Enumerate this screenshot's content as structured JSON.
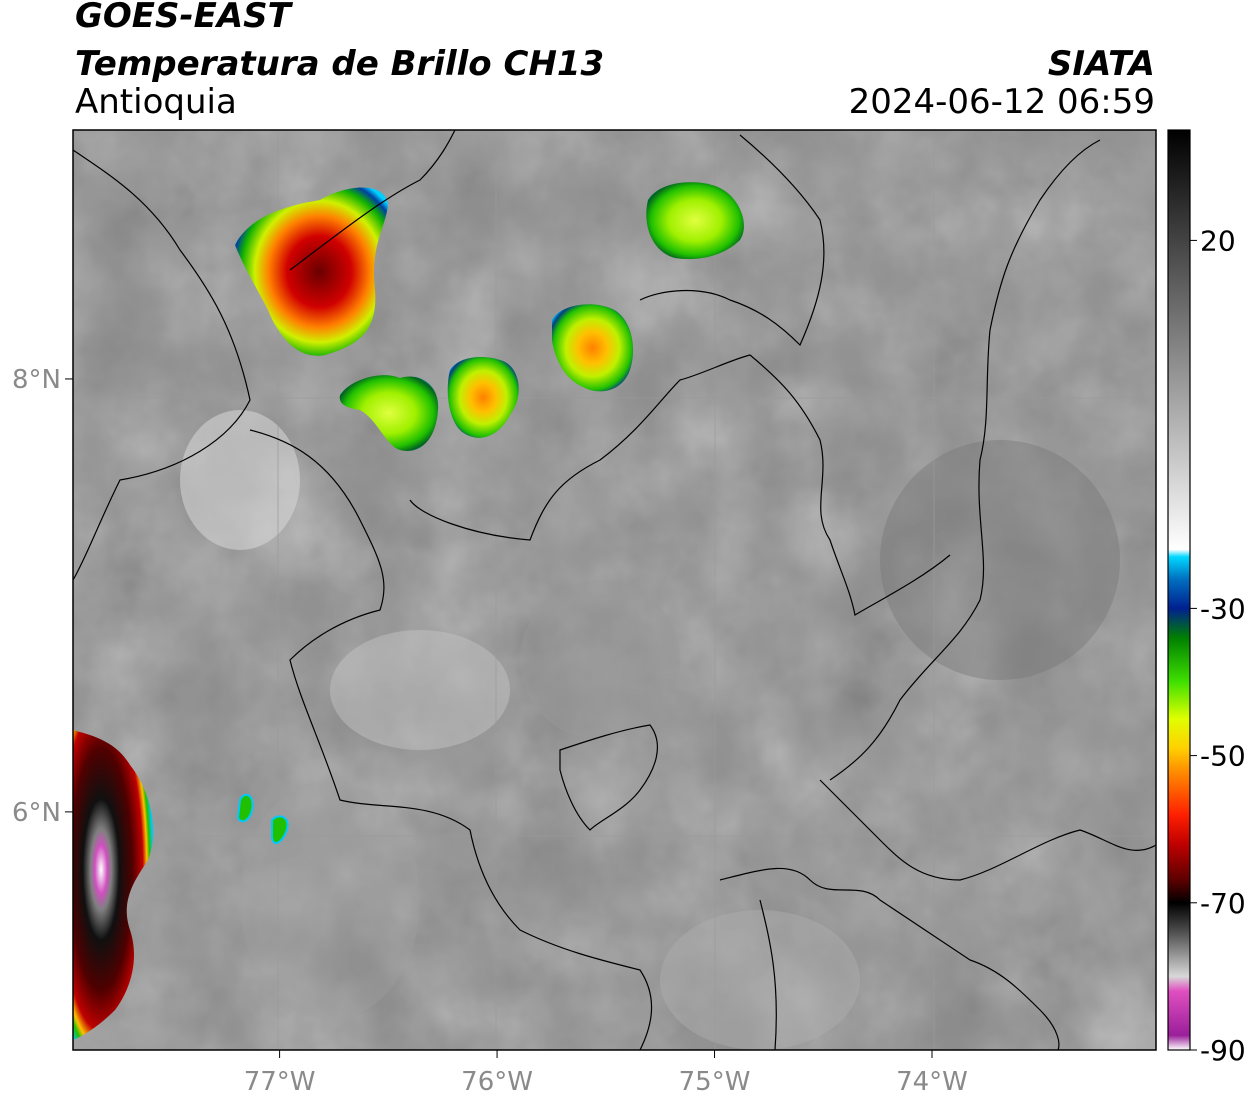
{
  "header": {
    "satellite": "GOES-EAST",
    "product": "Temperatura de Brillo CH13",
    "region": "Antioquia",
    "organization": "SIATA",
    "datetime": "2024-06-12 06:59"
  },
  "map": {
    "lon_range": [
      -77.95,
      -72.97
    ],
    "lat_range": [
      4.9,
      9.15
    ],
    "lon_ticks": [
      {
        "value": -77,
        "label": "77°W"
      },
      {
        "value": -76,
        "label": "76°W"
      },
      {
        "value": -75,
        "label": "75°W"
      },
      {
        "value": -74,
        "label": "74°W"
      }
    ],
    "lat_ticks": [
      {
        "value": 8,
        "label": "8°N"
      },
      {
        "value": 6,
        "label": "6°N"
      }
    ],
    "colors": {
      "background_gray": "#8c8c8c",
      "cold_core": "#8b0000",
      "mid": "#ff0000",
      "warm_edge": "#00c000",
      "outline": "#0000a0"
    }
  },
  "colorbar": {
    "range": [
      -90,
      35
    ],
    "ticks": [
      {
        "value": 20,
        "label": "20"
      },
      {
        "value": -30,
        "label": "-30"
      },
      {
        "value": -50,
        "label": "-50"
      },
      {
        "value": -70,
        "label": "-70"
      },
      {
        "value": -90,
        "label": "-90"
      }
    ],
    "stops": [
      {
        "value": -90,
        "color": "#ffffff"
      },
      {
        "value": -88,
        "color": "#9a1f9a"
      },
      {
        "value": -82,
        "color": "#e04fc0"
      },
      {
        "value": -80,
        "color": "#d8d8d8"
      },
      {
        "value": -74,
        "color": "#505050"
      },
      {
        "value": -70,
        "color": "#000000"
      },
      {
        "value": -67,
        "color": "#5a0000"
      },
      {
        "value": -62,
        "color": "#c00000"
      },
      {
        "value": -58,
        "color": "#ff2000"
      },
      {
        "value": -52,
        "color": "#ff9000"
      },
      {
        "value": -49,
        "color": "#ffd000"
      },
      {
        "value": -45,
        "color": "#e0ff00"
      },
      {
        "value": -40,
        "color": "#40e000"
      },
      {
        "value": -34,
        "color": "#008000"
      },
      {
        "value": -30,
        "color": "#002090"
      },
      {
        "value": -26,
        "color": "#0070c0"
      },
      {
        "value": -23,
        "color": "#00d8ff"
      },
      {
        "value": -22,
        "color": "#ffffff"
      },
      {
        "value": 35,
        "color": "#000000"
      }
    ]
  }
}
